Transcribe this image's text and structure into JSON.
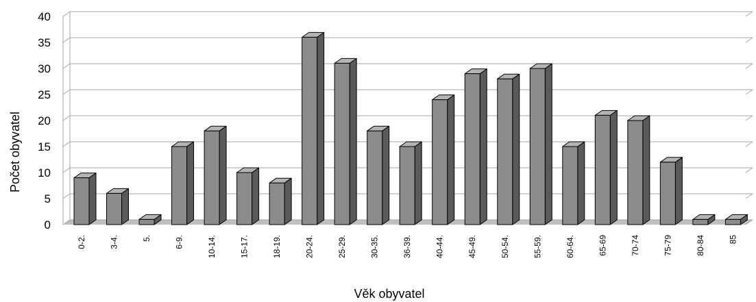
{
  "chart_data": {
    "type": "bar",
    "style": "3d-columns",
    "categories": [
      "0-2.",
      "3-4.",
      "5.",
      "6-9.",
      "10-14.",
      "15-17.",
      "18-19.",
      "20-24.",
      "25-29.",
      "30-35.",
      "36-39.",
      "40-44.",
      "45-49.",
      "50-54.",
      "55-59.",
      "60-64.",
      "65-69",
      "70-74",
      "75-79",
      "80-84",
      "85"
    ],
    "values": [
      9,
      6,
      1,
      15,
      18,
      10,
      8,
      36,
      31,
      18,
      15,
      24,
      29,
      28,
      30,
      15,
      21,
      20,
      12,
      1,
      1
    ],
    "xlabel": "Věk obyvatel",
    "ylabel": "Počet obyvatel",
    "ylim": [
      0,
      40
    ],
    "yticks": [
      "0",
      "5",
      "10",
      "15",
      "20",
      "25",
      "30",
      "35",
      "40"
    ],
    "grid": true,
    "legend": "none",
    "colors": {
      "bar_front": "#8c8c8c",
      "bar_side": "#5a5a5a",
      "bar_top": "#b4b4b4",
      "outline": "#000000",
      "grid": "#a6a6a6",
      "floor": "#bfbfbf"
    }
  }
}
